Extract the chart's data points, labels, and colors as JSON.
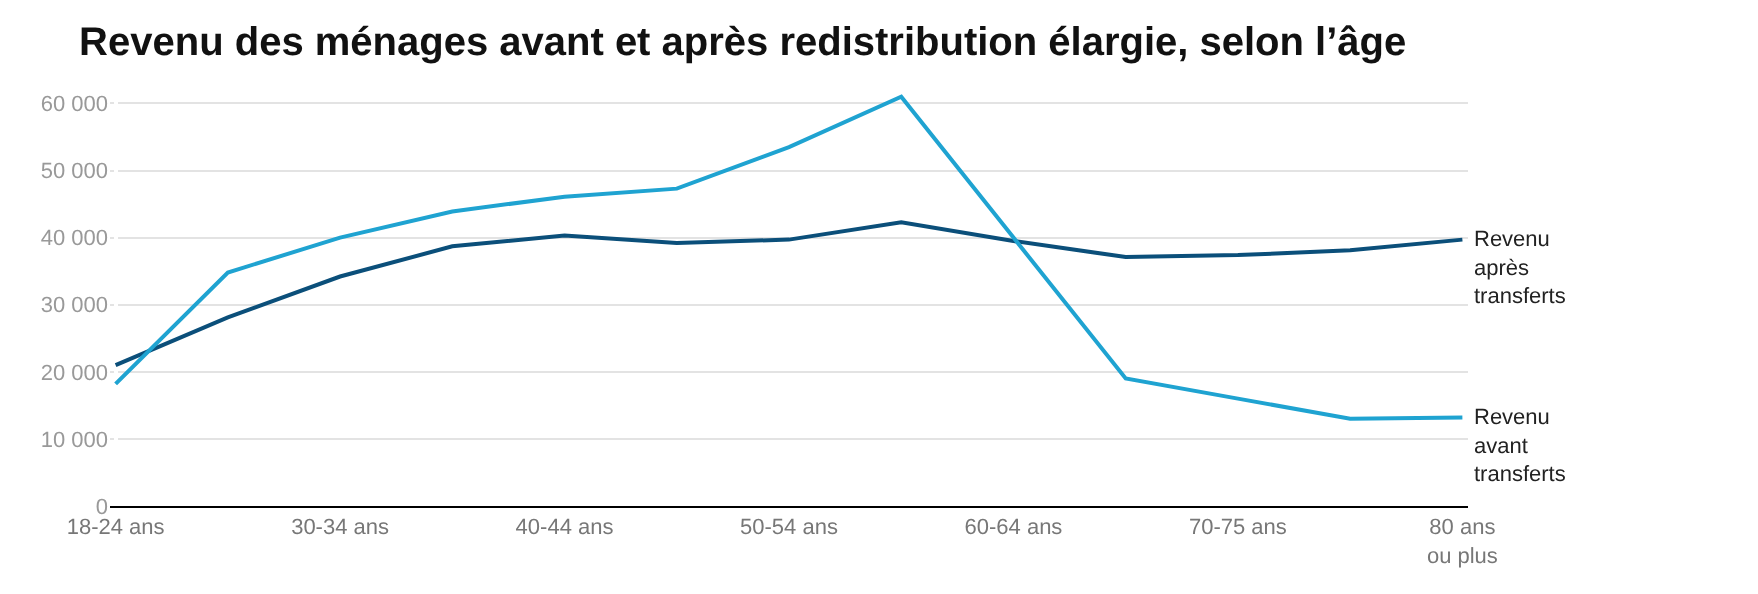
{
  "chart_data": {
    "type": "line",
    "title": "Revenu des ménages avant et après redistribution élargie, selon l’âge",
    "categories": [
      "18-24 ans",
      null,
      "30-34 ans",
      null,
      "40-44 ans",
      null,
      "50-54 ans",
      null,
      "60-64 ans",
      null,
      "70-75 ans",
      null,
      "80 ans\nou plus"
    ],
    "series": [
      {
        "name": "Revenu\naprès\ntransferts",
        "color": "#0b4f7a",
        "values": [
          21000,
          28100,
          34200,
          38700,
          40300,
          39200,
          39700,
          42300,
          39500,
          37100,
          37400,
          38100,
          39700
        ]
      },
      {
        "name": "Revenu\navant\ntransferts",
        "color": "#1fa3d1",
        "values": [
          18200,
          34800,
          40000,
          43900,
          46100,
          47300,
          53500,
          61000,
          40000,
          19000,
          16000,
          13000,
          13200
        ]
      }
    ],
    "ylim": [
      0,
      62000
    ],
    "yticks": [
      0,
      {
        "value": 10000,
        "label": "10 000"
      },
      {
        "value": 20000,
        "label": "20 000"
      },
      {
        "value": 30000,
        "label": "30 000"
      },
      {
        "value": 40000,
        "label": "40 000"
      },
      {
        "value": 50000,
        "label": "50 000"
      },
      {
        "value": 60000,
        "label": "60 000"
      }
    ],
    "grid": "y",
    "legend": false,
    "marker": "none",
    "line_style": "solid"
  }
}
